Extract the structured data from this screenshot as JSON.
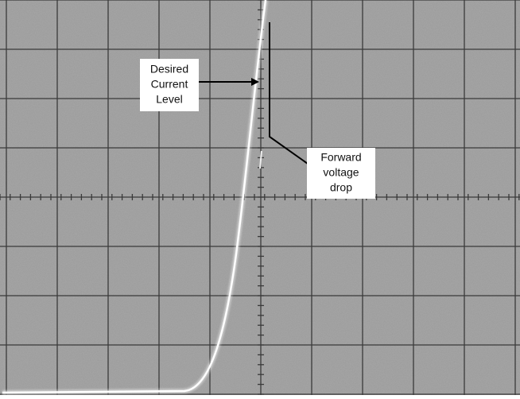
{
  "annotations": [
    {
      "lines": [
        "Desired",
        "Current",
        "Level"
      ]
    },
    {
      "lines": [
        "Forward",
        "voltage",
        "drop"
      ]
    }
  ]
}
